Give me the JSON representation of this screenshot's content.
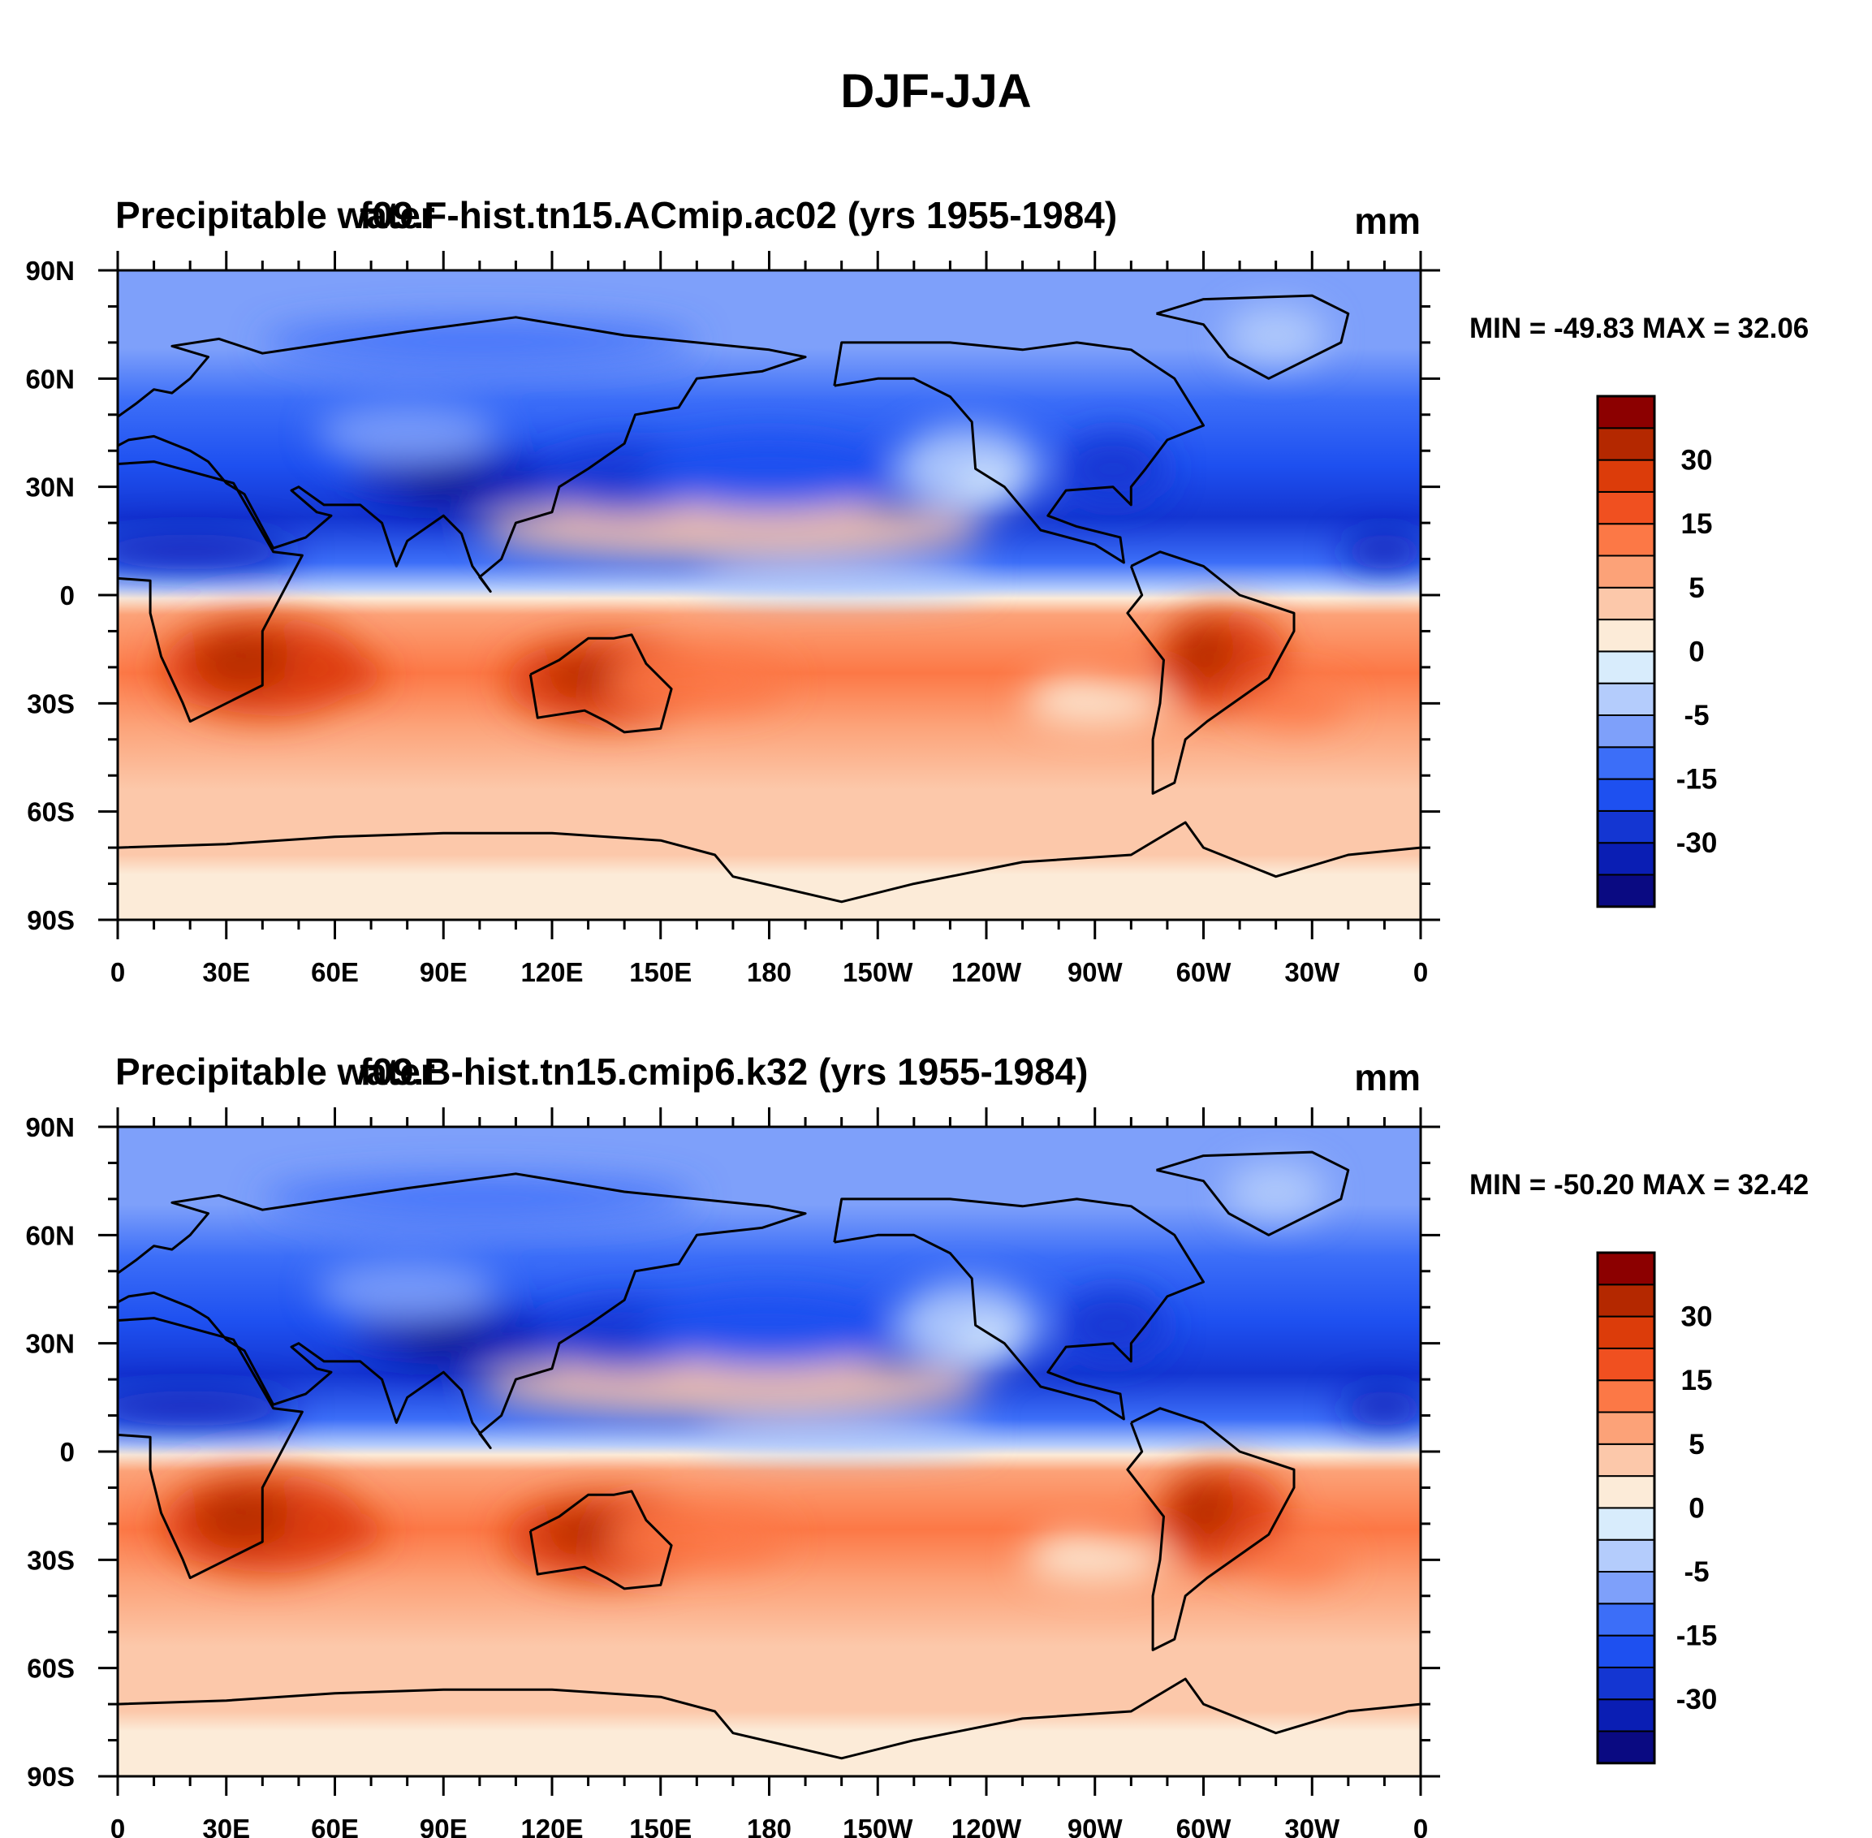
{
  "figure_title": "DJF-JJA",
  "panels": [
    {
      "left_title": "Precipitable water",
      "case_title": "f09.F-hist.tn15.ACmip.ac02 (yrs 1955-1984)",
      "units": "mm",
      "stats": "MIN = -49.83 MAX =  32.06",
      "min": -49.83,
      "max": 32.06
    },
    {
      "left_title": "Precipitable water",
      "case_title": "f09.B-hist.tn15.cmip6.k32 (yrs 1955-1984)",
      "units": "mm",
      "stats": "MIN = -50.20 MAX =  32.42",
      "min": -50.2,
      "max": 32.42
    }
  ],
  "lat_labels": [
    "90N",
    "60N",
    "30N",
    "0",
    "30S",
    "60S",
    "90S"
  ],
  "lon_labels": [
    "0",
    "30E",
    "60E",
    "90E",
    "120E",
    "150E",
    "180",
    "150W",
    "120W",
    "90W",
    "60W",
    "30W",
    "0"
  ],
  "colorbar": {
    "colors": [
      "#0a0a82",
      "#0a1eb4",
      "#1436d2",
      "#1e50f0",
      "#3c6ef8",
      "#7ea0fa",
      "#b4ccfc",
      "#d8ecfc",
      "#fcebd8",
      "#fcc8aa",
      "#fca278",
      "#fc7846",
      "#f05020",
      "#dc3c0a",
      "#b42800",
      "#8c0000"
    ],
    "labels": [
      "-30",
      "-15",
      "-5",
      "0",
      "5",
      "15",
      "30"
    ]
  },
  "chart_data": {
    "type": "heatmap",
    "title": "DJF-JJA",
    "variable": "Precipitable water",
    "units": "mm",
    "x_ticks": [
      "0",
      "30E",
      "60E",
      "90E",
      "120E",
      "150E",
      "180",
      "150W",
      "120W",
      "90W",
      "60W",
      "30W",
      "0"
    ],
    "y_ticks": [
      "90N",
      "60N",
      "30N",
      "0",
      "30S",
      "60S",
      "90S"
    ],
    "xlim": [
      0,
      360
    ],
    "ylim": [
      -90,
      90
    ],
    "contour_levels": [
      -40,
      -30,
      -25,
      -20,
      -15,
      -10,
      -5,
      -2,
      0,
      2,
      5,
      10,
      15,
      20,
      25,
      30,
      40
    ],
    "colorbar_labels": [
      "-30",
      "-15",
      "-5",
      "0",
      "5",
      "15",
      "30"
    ],
    "panels": [
      {
        "case": "f09.F-hist.tn15.ACmip.ac02 (yrs 1955-1984)",
        "min": -49.83,
        "max": 32.06
      },
      {
        "case": "f09.B-hist.tn15.cmip6.k32 (yrs 1955-1984)",
        "min": -50.2,
        "max": 32.42
      }
    ]
  }
}
